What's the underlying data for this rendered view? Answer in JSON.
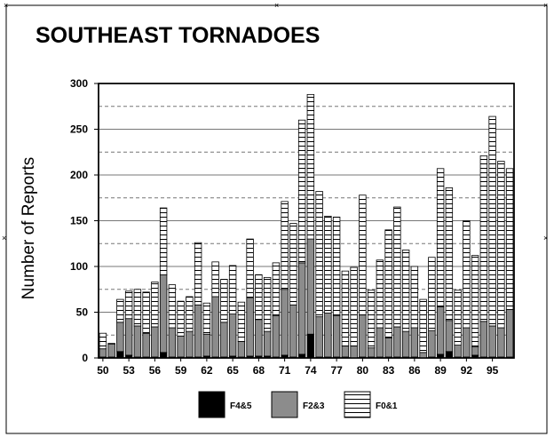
{
  "chart_data": {
    "type": "bar",
    "stacked": true,
    "title": "SOUTHEAST TORNADOES",
    "xlabel": "",
    "ylabel": "Number of Reports",
    "ylim": [
      0,
      300
    ],
    "yticks": [
      0,
      50,
      100,
      150,
      200,
      250,
      300
    ],
    "grid": true,
    "legend_position": "bottom",
    "categories": [
      "1950",
      "1951",
      "1952",
      "1953",
      "1954",
      "1955",
      "1956",
      "1957",
      "1958",
      "1959",
      "1960",
      "1961",
      "1962",
      "1963",
      "1964",
      "1965",
      "1966",
      "1967",
      "1968",
      "1969",
      "1970",
      "1971",
      "1972",
      "1973",
      "1974",
      "1975",
      "1976",
      "1977",
      "1978",
      "1979",
      "1980",
      "1981",
      "1982",
      "1983",
      "1984",
      "1985",
      "1986",
      "1987",
      "1988",
      "1989",
      "1990",
      "1991",
      "1992",
      "1993",
      "1994",
      "1995",
      "1996",
      "1997"
    ],
    "tick_labels": [
      "50",
      "53",
      "56",
      "59",
      "62",
      "65",
      "68",
      "71",
      "74",
      "77",
      "80",
      "83",
      "86",
      "89",
      "92",
      "95"
    ],
    "series": [
      {
        "name": "F4&5",
        "color": "#000000",
        "values": [
          1,
          1,
          7,
          3,
          1,
          1,
          1,
          6,
          1,
          1,
          1,
          1,
          2,
          1,
          1,
          2,
          1,
          2,
          2,
          2,
          1,
          3,
          1,
          4,
          26,
          1,
          1,
          1,
          1,
          0,
          1,
          1,
          1,
          1,
          1,
          1,
          1,
          0,
          1,
          4,
          7,
          1,
          1,
          3,
          1,
          1,
          1,
          1
        ]
      },
      {
        "name": "F2&3",
        "color": "#8c8c8c",
        "values": [
          9,
          14,
          32,
          40,
          34,
          26,
          33,
          85,
          32,
          23,
          28,
          57,
          24,
          66,
          38,
          46,
          17,
          64,
          40,
          27,
          45,
          72,
          57,
          100,
          104,
          44,
          48,
          45,
          12,
          13,
          46,
          10,
          32,
          21,
          33,
          28,
          32,
          6,
          29,
          52,
          34,
          13,
          32,
          9,
          39,
          34,
          32,
          52
        ]
      },
      {
        "name": "F0&1",
        "color": "#ffffff",
        "values": [
          17,
          1,
          25,
          30,
          40,
          45,
          49,
          73,
          47,
          38,
          38,
          68,
          34,
          38,
          47,
          53,
          43,
          64,
          49,
          59,
          58,
          96,
          89,
          156,
          158,
          137,
          106,
          108,
          82,
          86,
          131,
          63,
          74,
          118,
          131,
          89,
          67,
          58,
          80,
          151,
          145,
          60,
          117,
          100,
          181,
          229,
          182,
          154
        ]
      }
    ]
  }
}
